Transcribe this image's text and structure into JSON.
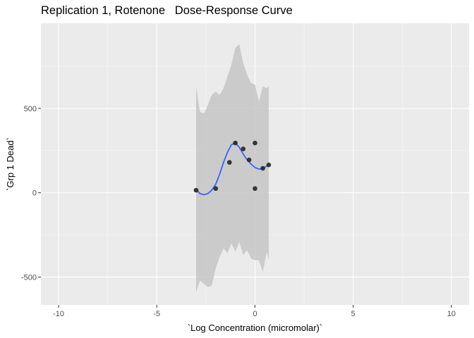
{
  "chart_data": {
    "type": "scatter",
    "title": "Replication 1, Rotenone   Dose-Response Curve",
    "xlabel": "`Log Concentration (micromolar)`",
    "ylabel": "`Grp 1 Dead`",
    "xlim": [
      -10.9,
      10.9
    ],
    "ylim": [
      -665,
      1005
    ],
    "x_ticks": [
      -10,
      -5,
      0,
      5,
      10
    ],
    "x_tick_labels": [
      "-10",
      "-5",
      "0",
      "5",
      "10"
    ],
    "y_ticks": [
      -500,
      0,
      500
    ],
    "y_tick_labels": [
      "-500",
      "0",
      "500"
    ],
    "grid": true,
    "background": "#ebebeb",
    "colors": {
      "points": "#262626",
      "smooth_line": "#3366ff",
      "ribbon": "#c6c6c6"
    },
    "points": [
      {
        "x": -3.0,
        "y": 15
      },
      {
        "x": -2.0,
        "y": 25
      },
      {
        "x": -1.3,
        "y": 180
      },
      {
        "x": -1.0,
        "y": 295
      },
      {
        "x": -0.6,
        "y": 260
      },
      {
        "x": -0.3,
        "y": 195
      },
      {
        "x": 0.0,
        "y": 295
      },
      {
        "x": 0.0,
        "y": 25
      },
      {
        "x": 0.4,
        "y": 145
      },
      {
        "x": 0.7,
        "y": 165
      }
    ],
    "smooth_series": {
      "name": "",
      "x": [
        -3.0,
        -2.8,
        -2.6,
        -2.4,
        -2.2,
        -2.0,
        -1.8,
        -1.6,
        -1.4,
        -1.2,
        -1.0,
        -0.8,
        -0.6,
        -0.4,
        -0.2,
        0.0,
        0.2,
        0.4,
        0.6,
        0.7
      ],
      "y": [
        20,
        -5,
        -12,
        -5,
        15,
        50,
        110,
        180,
        240,
        285,
        295,
        270,
        230,
        195,
        170,
        150,
        140,
        145,
        158,
        165
      ],
      "upper": [
        630,
        480,
        470,
        520,
        580,
        600,
        580,
        620,
        690,
        760,
        860,
        880,
        770,
        700,
        650,
        640,
        540,
        630,
        620,
        630
      ],
      "lower": [
        -590,
        -520,
        -540,
        -560,
        -550,
        -450,
        -380,
        -330,
        -360,
        -300,
        -350,
        -290,
        -370,
        -340,
        -390,
        -400,
        -400,
        -470,
        -350,
        -400
      ]
    }
  }
}
